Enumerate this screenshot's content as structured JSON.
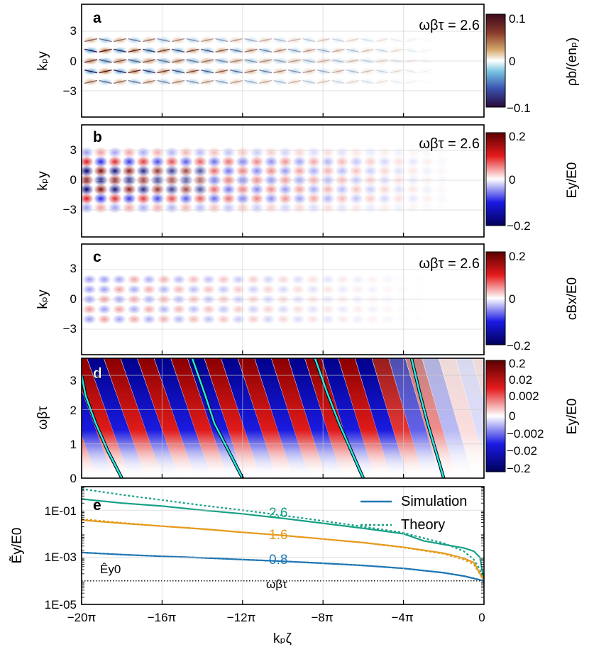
{
  "x_axis": {
    "label": "kₚζ",
    "ticks": [
      {
        "v": -20,
        "label": "−20π"
      },
      {
        "v": -16,
        "label": "−16π"
      },
      {
        "v": -12,
        "label": "−12π"
      },
      {
        "v": -8,
        "label": "−8π"
      },
      {
        "v": -4,
        "label": "−4π"
      },
      {
        "v": 0,
        "label": "0"
      }
    ]
  },
  "colors": {
    "sim_08": "#1f77b4",
    "sim_16": "#e69b1e",
    "sim_26": "#16a085",
    "cyan": "#22e5e5",
    "grid": "#cccccc"
  },
  "panels": {
    "a": {
      "letter": "a",
      "time": "ωβτ = 2.6",
      "ylabel": "kₚy",
      "yticks": [
        "3",
        "0",
        "−3"
      ],
      "cbar_label": "ρb/(enₚ)",
      "cbar_ticks": [
        "0.1",
        "0",
        "−0.1"
      ]
    },
    "b": {
      "letter": "b",
      "time": "ωβτ = 2.6",
      "ylabel": "kₚy",
      "yticks": [
        "3",
        "0",
        "−3"
      ],
      "cbar_label": "Ey/E0",
      "cbar_ticks": [
        "0.2",
        "0",
        "−0.2"
      ]
    },
    "c": {
      "letter": "c",
      "time": "ωβτ = 2.6",
      "ylabel": "kₚy",
      "yticks": [
        "3",
        "0",
        "−3"
      ],
      "cbar_label": "cBx/E0",
      "cbar_ticks": [
        "0.2",
        "0",
        "−0.2"
      ]
    },
    "d": {
      "letter": "d",
      "ylabel": "ωβτ",
      "yticks": [
        "3",
        "2",
        "1",
        "0"
      ],
      "cbar_label": "Ey/E0",
      "cbar_ticks": [
        "0.2",
        "0.02",
        "0.002",
        "0",
        "−0.002",
        "−0.02",
        "−0.2"
      ]
    },
    "e": {
      "letter": "e",
      "ylabel": "Ẽy/E0",
      "yticks": [
        "1E-01",
        "1E-03",
        "1E-05"
      ],
      "hat_label": "Êy0",
      "floor_label": "ωβτ",
      "legend": {
        "sim": "Simulation",
        "theory": "Theory"
      },
      "curve_labels": [
        "2.6",
        "1.6",
        "0.8"
      ]
    }
  },
  "chart_data": [
    {
      "panel": "a",
      "type": "heatmap",
      "title": "",
      "xlabel": "kₚζ",
      "ylabel": "kₚy",
      "xlim": [
        -20,
        0
      ],
      "xunit": "π",
      "ylim": [
        -6,
        6
      ],
      "clim": [
        -0.1,
        0.1
      ],
      "colormap": "diverging (purple-blue / white / brown-red)",
      "time": 2.6
    },
    {
      "panel": "b",
      "type": "heatmap",
      "title": "",
      "xlabel": "kₚζ",
      "ylabel": "kₚy",
      "xlim": [
        -20,
        0
      ],
      "xunit": "π",
      "ylim": [
        -6,
        6
      ],
      "clim": [
        -0.2,
        0.2
      ],
      "colormap": "seismic (blue / white / red)",
      "time": 2.6
    },
    {
      "panel": "c",
      "type": "heatmap",
      "title": "",
      "xlabel": "kₚζ",
      "ylabel": "kₚy",
      "xlim": [
        -20,
        0
      ],
      "xunit": "π",
      "ylim": [
        -6,
        6
      ],
      "clim": [
        -0.2,
        0.2
      ],
      "colormap": "seismic (blue / white / red)",
      "time": 2.6
    },
    {
      "panel": "d",
      "type": "heatmap",
      "title": "",
      "xlabel": "kₚζ",
      "ylabel": "ωβτ",
      "xlim": [
        -20,
        0
      ],
      "xunit": "π",
      "ylim": [
        0,
        3.5
      ],
      "clim": [
        -0.2,
        0.2
      ],
      "scale": "symlog",
      "cyan_curves": [
        {
          "x": [
            -18.0,
            -18.7,
            -19.3,
            -19.8,
            -20.0
          ],
          "y": [
            0,
            0.8,
            1.6,
            2.4,
            3.0
          ]
        },
        {
          "x": [
            -12.0,
            -12.7,
            -13.4,
            -13.9,
            -14.5
          ],
          "y": [
            0,
            0.8,
            1.6,
            2.5,
            3.5
          ]
        },
        {
          "x": [
            -6.0,
            -6.6,
            -7.2,
            -7.8,
            -8.4
          ],
          "y": [
            0,
            0.8,
            1.6,
            2.5,
            3.5
          ]
        },
        {
          "x": [
            -2.0,
            -2.4,
            -2.8,
            -3.2,
            -3.6
          ],
          "y": [
            0,
            0.8,
            1.6,
            2.5,
            3.5
          ]
        }
      ]
    },
    {
      "panel": "e",
      "type": "line",
      "title": "",
      "xlabel": "kₚζ",
      "ylabel": "Ẽy/E0",
      "xlim": [
        -20,
        0
      ],
      "xunit": "π",
      "ylim": [
        1e-05,
        1
      ],
      "yscale": "log",
      "floor": 0.0001,
      "series": [
        {
          "name": "2.6",
          "kind": "Simulation",
          "x": [
            -20,
            -18,
            -16,
            -14,
            -12,
            -10,
            -8,
            -6,
            -4,
            -3,
            -2,
            -1,
            -0.5,
            -0.2,
            0
          ],
          "y": [
            0.3,
            0.2,
            0.15,
            0.1,
            0.07,
            0.045,
            0.028,
            0.017,
            0.01,
            0.005,
            0.0035,
            0.0025,
            0.0018,
            0.001,
            0.0001
          ]
        },
        {
          "name": "2.6",
          "kind": "Theory",
          "x": [
            -20,
            -18,
            -16,
            -14,
            -12,
            -10,
            -8,
            -6,
            -4,
            -3,
            -2,
            -1,
            -0.5,
            -0.2,
            0
          ],
          "y": [
            0.8,
            0.45,
            0.27,
            0.16,
            0.1,
            0.06,
            0.035,
            0.02,
            0.011,
            0.0065,
            0.004,
            0.0018,
            0.0008,
            0.0003,
            0.0001
          ]
        },
        {
          "name": "1.6",
          "kind": "Simulation",
          "x": [
            -20,
            -18,
            -16,
            -14,
            -12,
            -10,
            -8,
            -6,
            -4,
            -2,
            -1,
            -0.5,
            0
          ],
          "y": [
            0.038,
            0.028,
            0.021,
            0.016,
            0.0115,
            0.0085,
            0.006,
            0.0042,
            0.0027,
            0.0015,
            0.0009,
            0.0006,
            0.0001
          ]
        },
        {
          "name": "1.6",
          "kind": "Theory",
          "x": [
            -20,
            -18,
            -16,
            -14,
            -12,
            -10,
            -8,
            -6,
            -4,
            -2,
            -1,
            -0.5,
            0
          ],
          "y": [
            0.042,
            0.029,
            0.021,
            0.016,
            0.0115,
            0.0085,
            0.006,
            0.0042,
            0.0026,
            0.0014,
            0.0008,
            0.0005,
            0.0001
          ]
        },
        {
          "name": "0.8",
          "kind": "Simulation",
          "x": [
            -20,
            -18,
            -16,
            -14,
            -12,
            -10,
            -8,
            -6,
            -4,
            -2,
            -1,
            0
          ],
          "y": [
            0.0016,
            0.0013,
            0.0011,
            0.00095,
            0.0008,
            0.00068,
            0.00056,
            0.00045,
            0.00034,
            0.00022,
            0.00016,
            0.0001
          ]
        },
        {
          "name": "0.8",
          "kind": "Theory",
          "x": [
            -20,
            -18,
            -16,
            -14,
            -12,
            -10,
            -8,
            -6,
            -4,
            -2,
            -1,
            0
          ],
          "y": [
            0.0016,
            0.0013,
            0.0011,
            0.00095,
            0.0008,
            0.00068,
            0.00056,
            0.00045,
            0.00034,
            0.00022,
            0.00016,
            0.0001
          ]
        }
      ]
    }
  ]
}
